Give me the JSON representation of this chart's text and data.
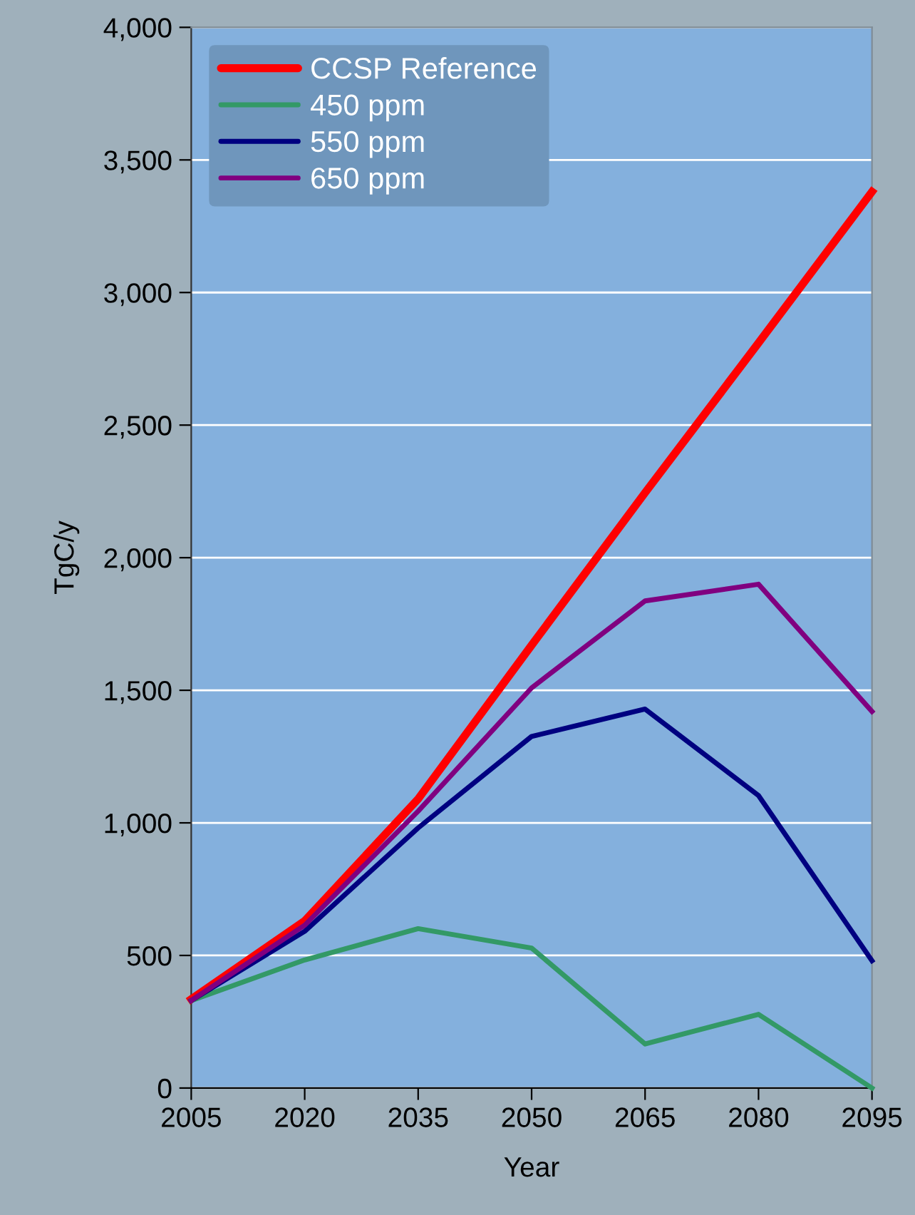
{
  "chart_data": {
    "type": "line",
    "xlabel": "Year",
    "ylabel": "TgC/y",
    "x": [
      2005,
      2020,
      2035,
      2050,
      2065,
      2080,
      2095
    ],
    "series": [
      {
        "name": "CCSP Reference",
        "color": "#ff0000",
        "values": [
          335,
          630,
          1090,
          1670,
          2245,
          2810,
          3380
        ]
      },
      {
        "name": "450 ppm",
        "color": "#339966",
        "values": [
          330,
          483,
          601,
          528,
          166,
          278,
          0
        ]
      },
      {
        "name": "550 ppm",
        "color": "#000080",
        "values": [
          330,
          591,
          981,
          1326,
          1429,
          1103,
          480
        ]
      },
      {
        "name": "650 ppm",
        "color": "#800080",
        "values": [
          330,
          614,
          1044,
          1509,
          1837,
          1900,
          1420
        ]
      }
    ],
    "xlim": [
      2005,
      2095
    ],
    "xticks": [
      2005,
      2020,
      2035,
      2050,
      2065,
      2080,
      2095
    ],
    "ylim": [
      0,
      4000
    ],
    "yticks": [
      {
        "value": 0,
        "label": "0"
      },
      {
        "value": 500,
        "label": "500"
      },
      {
        "value": 1000,
        "label": "1,000"
      },
      {
        "value": 1500,
        "label": "1,500"
      },
      {
        "value": 2000,
        "label": "2,000"
      },
      {
        "value": 2500,
        "label": "2,500"
      },
      {
        "value": 3000,
        "label": "3,000"
      },
      {
        "value": 3500,
        "label": "3,500"
      },
      {
        "value": 4000,
        "label": "4,000"
      }
    ],
    "grid": "y",
    "legend": "top left",
    "marker": "none",
    "line_style": "solid"
  }
}
